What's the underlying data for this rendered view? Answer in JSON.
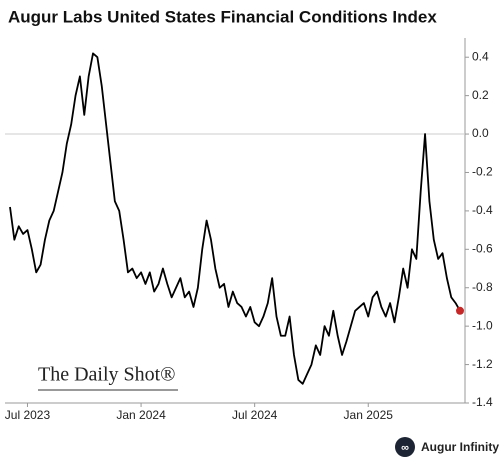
{
  "chart_data": {
    "type": "line",
    "title": "Augur Labs United States Financial Conditions Index",
    "watermark": "The Daily Shot®",
    "source": "Augur Infinity",
    "categories": [
      null,
      null,
      null,
      null,
      "Jul 2023",
      null,
      null,
      null,
      null,
      null,
      null,
      null,
      null,
      null,
      null,
      null,
      null,
      null,
      null,
      null,
      null,
      null,
      null,
      null,
      null,
      null,
      null,
      null,
      null,
      null,
      "Jan 2024",
      null,
      null,
      null,
      null,
      null,
      null,
      null,
      null,
      null,
      null,
      null,
      null,
      null,
      null,
      null,
      null,
      null,
      null,
      null,
      null,
      null,
      null,
      null,
      null,
      null,
      "Jul 2024",
      null,
      null,
      null,
      null,
      null,
      null,
      null,
      null,
      null,
      null,
      null,
      null,
      null,
      null,
      null,
      null,
      null,
      null,
      null,
      null,
      null,
      null,
      null,
      null,
      null,
      "Jan 2025",
      null,
      null,
      null,
      null,
      null,
      null,
      null,
      null,
      null,
      null,
      null,
      null,
      null,
      null,
      null,
      null,
      null,
      null,
      null,
      null,
      null
    ],
    "series": [
      {
        "color": "#000000",
        "values": [
          -0.38,
          -0.55,
          -0.48,
          -0.52,
          -0.5,
          -0.6,
          -0.72,
          -0.68,
          -0.55,
          -0.45,
          -0.4,
          -0.3,
          -0.2,
          -0.05,
          0.05,
          0.2,
          0.3,
          0.1,
          0.3,
          0.42,
          0.4,
          0.25,
          0.05,
          -0.15,
          -0.35,
          -0.4,
          -0.55,
          -0.72,
          -0.7,
          -0.75,
          -0.72,
          -0.78,
          -0.72,
          -0.82,
          -0.78,
          -0.7,
          -0.78,
          -0.85,
          -0.8,
          -0.75,
          -0.85,
          -0.82,
          -0.9,
          -0.8,
          -0.6,
          -0.45,
          -0.55,
          -0.7,
          -0.8,
          -0.78,
          -0.9,
          -0.82,
          -0.88,
          -0.9,
          -0.95,
          -0.9,
          -0.98,
          -1.0,
          -0.95,
          -0.88,
          -0.75,
          -0.95,
          -1.05,
          -1.05,
          -0.95,
          -1.15,
          -1.28,
          -1.3,
          -1.25,
          -1.2,
          -1.1,
          -1.15,
          -1.0,
          -1.05,
          -0.92,
          -1.05,
          -1.15,
          -1.08,
          -1.0,
          -0.92,
          -0.9,
          -0.88,
          -0.95,
          -0.85,
          -0.82,
          -0.9,
          -0.95,
          -0.88,
          -0.98,
          -0.85,
          -0.7,
          -0.8,
          -0.6,
          -0.65,
          -0.3,
          0.0,
          -0.35,
          -0.55,
          -0.65,
          -0.62,
          -0.75,
          -0.85,
          -0.88,
          -0.92
        ]
      }
    ],
    "last_point_color": "#c62828",
    "zero_line_color": "#cccccc",
    "ylim": [
      -1.4,
      0.5
    ],
    "yticks": [
      -1.4,
      -1.2,
      {
        "value": -1.0,
        "label": "-1.0"
      },
      -0.8,
      -0.6,
      -0.4,
      -0.2,
      {
        "value": 0,
        "label": "0.0"
      },
      0.2,
      0.4
    ]
  }
}
